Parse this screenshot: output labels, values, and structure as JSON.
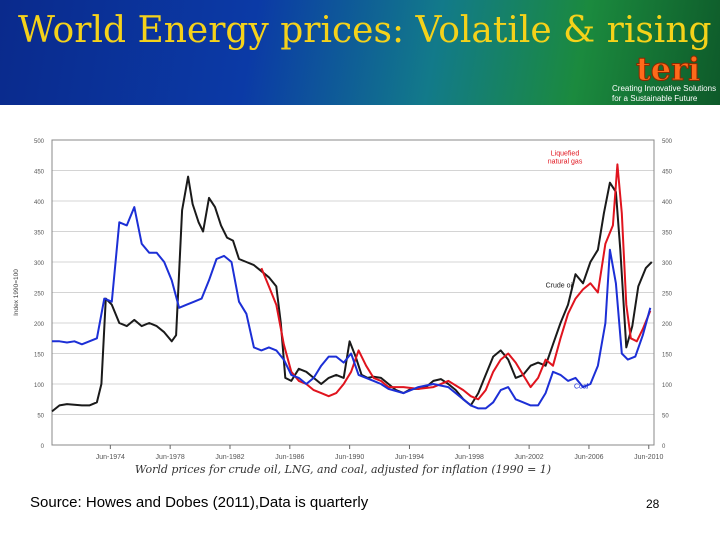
{
  "slide": {
    "title": "World Energy prices: Volatile & rising",
    "logo_text": "teri",
    "tagline_line1": "Creating Innovative Solutions",
    "tagline_line2": "for a Sustainable Future",
    "source": "Source: Howes and Dobes (2011),Data is quarterly",
    "slide_number": "28"
  },
  "chart_data": {
    "type": "line",
    "title": "",
    "caption": "World prices for crude oil, LNG, and coal, adjusted for inflation (1990 = 1)",
    "ylabel": "Index 1990=100",
    "ylim": [
      0,
      500
    ],
    "yticks": [
      0,
      50,
      100,
      150,
      200,
      250,
      300,
      350,
      400,
      450,
      500
    ],
    "xlim": [
      1970.5,
      2010.75
    ],
    "xticks": [
      {
        "value": 1974.4,
        "label": "Jun-1974"
      },
      {
        "value": 1978.4,
        "label": "Jun-1978"
      },
      {
        "value": 1982.4,
        "label": "Jun-1982"
      },
      {
        "value": 1986.4,
        "label": "Jun-1986"
      },
      {
        "value": 1990.4,
        "label": "Jun-1990"
      },
      {
        "value": 1994.4,
        "label": "Jun-1994"
      },
      {
        "value": 1998.4,
        "label": "Jun-1998"
      },
      {
        "value": 2002.4,
        "label": "Jun-2002"
      },
      {
        "value": 2006.4,
        "label": "Jun-2006"
      },
      {
        "value": 2010.4,
        "label": "Jun-2010"
      }
    ],
    "series": [
      {
        "name": "Crude oil",
        "label": "Crude oil",
        "color": "#1a1a1a",
        "label_at": [
          2003.5,
          258
        ],
        "points": [
          [
            1970.5,
            55
          ],
          [
            1971,
            65
          ],
          [
            1971.5,
            67
          ],
          [
            1972,
            66
          ],
          [
            1972.5,
            65
          ],
          [
            1973,
            65
          ],
          [
            1973.5,
            70
          ],
          [
            1973.8,
            100
          ],
          [
            1974.1,
            240
          ],
          [
            1974.5,
            230
          ],
          [
            1975,
            200
          ],
          [
            1975.5,
            195
          ],
          [
            1976,
            205
          ],
          [
            1976.5,
            195
          ],
          [
            1977,
            200
          ],
          [
            1977.5,
            195
          ],
          [
            1978,
            185
          ],
          [
            1978.5,
            170
          ],
          [
            1978.8,
            180
          ],
          [
            1979.2,
            385
          ],
          [
            1979.6,
            440
          ],
          [
            1979.9,
            395
          ],
          [
            1980.3,
            365
          ],
          [
            1980.6,
            350
          ],
          [
            1981,
            405
          ],
          [
            1981.4,
            390
          ],
          [
            1981.8,
            360
          ],
          [
            1982.2,
            340
          ],
          [
            1982.6,
            335
          ],
          [
            1983,
            305
          ],
          [
            1983.5,
            300
          ],
          [
            1984,
            295
          ],
          [
            1984.5,
            285
          ],
          [
            1985,
            275
          ],
          [
            1985.5,
            260
          ],
          [
            1985.8,
            200
          ],
          [
            1986.1,
            110
          ],
          [
            1986.5,
            105
          ],
          [
            1987,
            125
          ],
          [
            1987.5,
            120
          ],
          [
            1988,
            110
          ],
          [
            1988.5,
            100
          ],
          [
            1989,
            110
          ],
          [
            1989.5,
            115
          ],
          [
            1990,
            110
          ],
          [
            1990.4,
            170
          ],
          [
            1990.8,
            145
          ],
          [
            1991.2,
            115
          ],
          [
            1991.6,
            110
          ],
          [
            1992,
            112
          ],
          [
            1992.5,
            110
          ],
          [
            1993,
            100
          ],
          [
            1993.5,
            90
          ],
          [
            1994,
            85
          ],
          [
            1994.5,
            92
          ],
          [
            1995,
            92
          ],
          [
            1995.5,
            95
          ],
          [
            1996,
            105
          ],
          [
            1996.5,
            108
          ],
          [
            1997,
            100
          ],
          [
            1997.5,
            90
          ],
          [
            1998,
            75
          ],
          [
            1998.5,
            65
          ],
          [
            1999,
            85
          ],
          [
            1999.5,
            115
          ],
          [
            2000,
            145
          ],
          [
            2000.5,
            155
          ],
          [
            2001,
            140
          ],
          [
            2001.5,
            110
          ],
          [
            2002,
            115
          ],
          [
            2002.5,
            130
          ],
          [
            2003,
            135
          ],
          [
            2003.5,
            130
          ],
          [
            2004,
            165
          ],
          [
            2004.5,
            200
          ],
          [
            2005,
            230
          ],
          [
            2005.5,
            280
          ],
          [
            2006,
            265
          ],
          [
            2006.5,
            300
          ],
          [
            2007,
            320
          ],
          [
            2007.4,
            380
          ],
          [
            2007.8,
            430
          ],
          [
            2008.2,
            415
          ],
          [
            2008.5,
            320
          ],
          [
            2008.9,
            160
          ],
          [
            2009.3,
            195
          ],
          [
            2009.7,
            260
          ],
          [
            2010.2,
            290
          ],
          [
            2010.6,
            300
          ]
        ]
      },
      {
        "name": "Liquefied natural gas",
        "label_line1": "Liquefied",
        "label_line2": "natural gas",
        "color": "#e0141e",
        "label_at": [
          2004.8,
          475
        ],
        "points": [
          [
            1984.5,
            290
          ],
          [
            1985,
            260
          ],
          [
            1985.5,
            230
          ],
          [
            1986,
            165
          ],
          [
            1986.5,
            120
          ],
          [
            1987,
            105
          ],
          [
            1987.5,
            100
          ],
          [
            1988,
            90
          ],
          [
            1988.5,
            85
          ],
          [
            1989,
            80
          ],
          [
            1989.5,
            85
          ],
          [
            1990,
            100
          ],
          [
            1990.5,
            120
          ],
          [
            1991,
            155
          ],
          [
            1991.5,
            130
          ],
          [
            1992,
            110
          ],
          [
            1992.5,
            105
          ],
          [
            1993,
            95
          ],
          [
            1994,
            95
          ],
          [
            1995,
            92
          ],
          [
            1996,
            95
          ],
          [
            1997,
            105
          ],
          [
            1998,
            90
          ],
          [
            1998.5,
            80
          ],
          [
            1999,
            75
          ],
          [
            1999.5,
            90
          ],
          [
            2000,
            120
          ],
          [
            2000.5,
            140
          ],
          [
            2001,
            150
          ],
          [
            2001.5,
            135
          ],
          [
            2002,
            115
          ],
          [
            2002.5,
            95
          ],
          [
            2003,
            110
          ],
          [
            2003.5,
            140
          ],
          [
            2004,
            130
          ],
          [
            2004.5,
            175
          ],
          [
            2005,
            215
          ],
          [
            2005.5,
            240
          ],
          [
            2006,
            255
          ],
          [
            2006.5,
            265
          ],
          [
            2007,
            250
          ],
          [
            2007.5,
            330
          ],
          [
            2008,
            360
          ],
          [
            2008.3,
            460
          ],
          [
            2008.6,
            380
          ],
          [
            2008.9,
            230
          ],
          [
            2009.2,
            175
          ],
          [
            2009.6,
            170
          ],
          [
            2010,
            190
          ],
          [
            2010.5,
            220
          ]
        ]
      },
      {
        "name": "Coal",
        "label": "Coal",
        "color": "#1c2fd6",
        "label_at": [
          2005.4,
          93
        ],
        "points": [
          [
            1970.5,
            170
          ],
          [
            1971,
            170
          ],
          [
            1971.5,
            168
          ],
          [
            1972,
            170
          ],
          [
            1972.5,
            165
          ],
          [
            1973,
            170
          ],
          [
            1973.5,
            175
          ],
          [
            1974,
            240
          ],
          [
            1974.5,
            235
          ],
          [
            1975,
            365
          ],
          [
            1975.5,
            360
          ],
          [
            1976,
            390
          ],
          [
            1976.5,
            330
          ],
          [
            1977,
            315
          ],
          [
            1977.5,
            315
          ],
          [
            1978,
            300
          ],
          [
            1978.5,
            270
          ],
          [
            1979,
            225
          ],
          [
            1979.5,
            230
          ],
          [
            1980,
            235
          ],
          [
            1980.5,
            240
          ],
          [
            1981,
            270
          ],
          [
            1981.5,
            305
          ],
          [
            1982,
            310
          ],
          [
            1982.5,
            300
          ],
          [
            1983,
            235
          ],
          [
            1983.5,
            215
          ],
          [
            1984,
            160
          ],
          [
            1984.5,
            155
          ],
          [
            1985,
            160
          ],
          [
            1985.5,
            155
          ],
          [
            1986,
            140
          ],
          [
            1986.5,
            115
          ],
          [
            1987,
            110
          ],
          [
            1987.5,
            100
          ],
          [
            1988,
            110
          ],
          [
            1988.5,
            130
          ],
          [
            1989,
            145
          ],
          [
            1989.5,
            145
          ],
          [
            1990,
            135
          ],
          [
            1990.5,
            150
          ],
          [
            1991,
            115
          ],
          [
            1991.5,
            110
          ],
          [
            1992,
            105
          ],
          [
            1992.5,
            100
          ],
          [
            1993,
            92
          ],
          [
            1994,
            85
          ],
          [
            1995,
            95
          ],
          [
            1996,
            100
          ],
          [
            1997,
            95
          ],
          [
            1998,
            75
          ],
          [
            1998.5,
            65
          ],
          [
            1999,
            60
          ],
          [
            1999.5,
            60
          ],
          [
            2000,
            70
          ],
          [
            2000.5,
            90
          ],
          [
            2001,
            95
          ],
          [
            2001.5,
            75
          ],
          [
            2002,
            70
          ],
          [
            2002.5,
            65
          ],
          [
            2003,
            65
          ],
          [
            2003.5,
            85
          ],
          [
            2004,
            120
          ],
          [
            2004.5,
            115
          ],
          [
            2005,
            105
          ],
          [
            2005.5,
            110
          ],
          [
            2006,
            95
          ],
          [
            2006.5,
            100
          ],
          [
            2007,
            130
          ],
          [
            2007.5,
            200
          ],
          [
            2007.8,
            320
          ],
          [
            2008.2,
            265
          ],
          [
            2008.6,
            150
          ],
          [
            2009,
            140
          ],
          [
            2009.5,
            145
          ],
          [
            2010,
            180
          ],
          [
            2010.5,
            225
          ]
        ]
      }
    ]
  }
}
